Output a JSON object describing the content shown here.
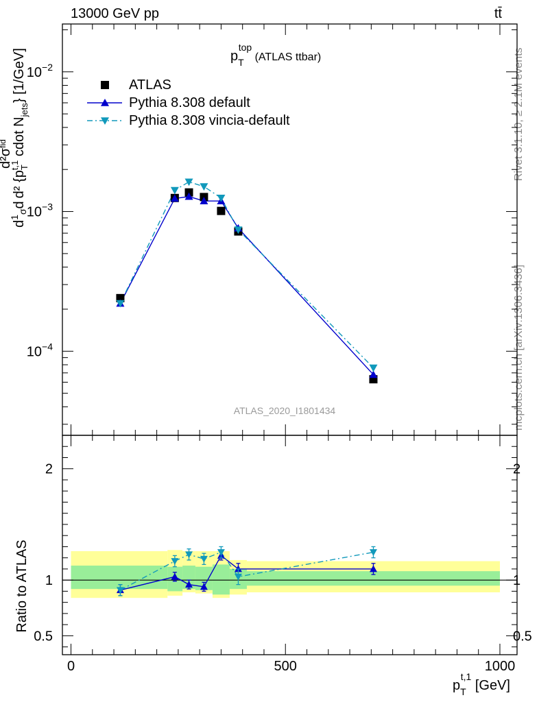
{
  "header": {
    "left_title": "13000 GeV pp",
    "right_title": "tt̄"
  },
  "side_text": {
    "rivet": "Rivet 3.1.10, ≥ 2.1M events",
    "mcplots": "mcplots.cern.ch [arXiv:1306.3436]"
  },
  "watermark": "ATLAS_2020_I1801434",
  "plot_title": {
    "main": "p",
    "sup": "top",
    "sub": "T",
    "suffix": " (ATLAS ttbar)"
  },
  "y_axis_label": "d¹⁄σ d²σᶠᴵᵈ / d²{pₜᵗ·¹ cdot Nⱼₑₜₛ} [1/GeV]",
  "y_axis_label_parts": {
    "d1": "d",
    "one": "1",
    "sigma": "σ",
    "d2": "d",
    "frac_num": "d²σ",
    "frac_num_sup": "fid",
    "frac_den": "d² {p",
    "frac_den_sub": "T",
    "frac_den_sup": "t,1",
    "frac_den_rest": " cdot N",
    "njets_sub": "jets",
    "unit": "} [1/GeV]"
  },
  "ratio_y_label": "Ratio to ATLAS",
  "x_axis_label": {
    "main": "p",
    "sub": "T",
    "sup": "t,1",
    "unit": " [GeV]"
  },
  "legend": [
    {
      "label": "ATLAS",
      "marker": "square",
      "color": "#000000"
    },
    {
      "label": "Pythia 8.308 default",
      "marker": "triangle-up",
      "color": "#0000cc"
    },
    {
      "label": "Pythia 8.308 vincia-default",
      "marker": "triangle-down",
      "color": "#1199bb"
    }
  ],
  "main_y_ticks": [
    {
      "base": "10",
      "exp": "−2",
      "value": 0.01
    },
    {
      "base": "10",
      "exp": "−3",
      "value": 0.001
    },
    {
      "base": "10",
      "exp": "−4",
      "value": 0.0001
    }
  ],
  "ratio_y_ticks": [
    {
      "label": "2",
      "value": 2
    },
    {
      "label": "1",
      "value": 1
    },
    {
      "label": "0.5",
      "value": 0.5
    }
  ],
  "x_ticks": [
    {
      "label": "0",
      "value": 0
    },
    {
      "label": "500",
      "value": 500
    },
    {
      "label": "1000",
      "value": 1000
    }
  ],
  "chart_data": {
    "type": "scatter",
    "title": "pT top (ATLAS ttbar)",
    "xlabel": "pT t,1 [GeV]",
    "ylabel": "d1/sigma d d2sigma_fid / d2{pT t,1 cdot N_jets} [1/GeV]",
    "xlim": [
      -20,
      1040
    ],
    "ylim": [
      2.5e-05,
      0.022
    ],
    "yscale": "log",
    "ratio_ylim": [
      0.33,
      2.3
    ],
    "bin_edges": [
      0,
      225,
      260,
      290,
      330,
      370,
      410,
      1000
    ],
    "x": [
      115,
      242,
      275,
      310,
      350,
      390,
      705
    ],
    "series": [
      {
        "name": "ATLAS",
        "values": [
          0.00024,
          0.00125,
          0.00137,
          0.00127,
          0.00101,
          0.00072,
          6.3e-05
        ],
        "ratio": [
          1,
          1,
          1,
          1,
          1,
          1,
          1
        ],
        "ratio_err": [
          0,
          0,
          0,
          0,
          0,
          0,
          0
        ]
      },
      {
        "name": "Pythia 8.308 default",
        "values": [
          0.00022,
          0.00124,
          0.00128,
          0.00119,
          0.00119,
          0.00076,
          6.8e-05
        ],
        "ratio": [
          0.91,
          1.03,
          0.96,
          0.94,
          1.22,
          1.1,
          1.1
        ],
        "ratio_err": [
          0.05,
          0.04,
          0.04,
          0.04,
          0.04,
          0.05,
          0.05
        ]
      },
      {
        "name": "Pythia 8.308 vincia-default",
        "values": [
          0.00022,
          0.00142,
          0.00163,
          0.00151,
          0.00125,
          0.00074,
          7.6e-05
        ],
        "ratio": [
          0.91,
          1.17,
          1.23,
          1.19,
          1.25,
          1.03,
          1.25
        ],
        "ratio_err": [
          0.05,
          0.05,
          0.05,
          0.05,
          0.05,
          0.07,
          0.05
        ]
      }
    ],
    "uncertainty_bands": {
      "stat_syst_inner": [
        [
          0.92,
          1.13
        ],
        [
          0.9,
          1.12
        ],
        [
          0.92,
          1.13
        ],
        [
          0.91,
          1.12
        ],
        [
          0.87,
          1.14
        ],
        [
          0.92,
          1.1
        ],
        [
          0.95,
          1.08
        ]
      ],
      "total_outer": [
        [
          0.84,
          1.26
        ],
        [
          0.86,
          1.27
        ],
        [
          0.89,
          1.26
        ],
        [
          0.88,
          1.26
        ],
        [
          0.84,
          1.26
        ],
        [
          0.87,
          1.18
        ],
        [
          0.89,
          1.17
        ]
      ]
    }
  }
}
